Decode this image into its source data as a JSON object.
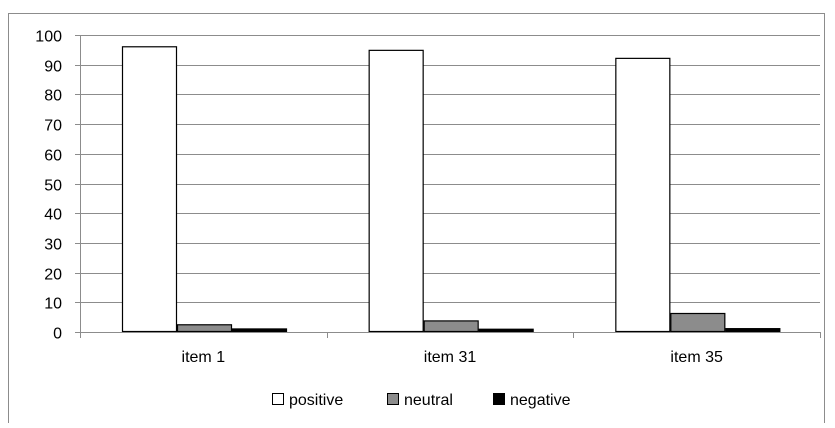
{
  "chart_data": {
    "type": "bar",
    "title": "",
    "xlabel": "",
    "ylabel": "",
    "categories": [
      "item 1",
      "item 31",
      "item 35"
    ],
    "ylim": [
      0,
      100
    ],
    "yticks": [
      0,
      10,
      20,
      30,
      40,
      50,
      60,
      70,
      80,
      90,
      100
    ],
    "yticks_labels": [
      "0",
      "10",
      "20",
      "30",
      "40",
      "50",
      "60",
      "70",
      "80",
      "90",
      "100"
    ],
    "grid": "horizontal",
    "legend_position": "bottom",
    "series": [
      {
        "name": "positive",
        "values": [
          96.2,
          95.0,
          92.3
        ],
        "color": "#ffffff"
      },
      {
        "name": "neutral",
        "values": [
          2.6,
          3.9,
          6.4
        ],
        "color": "#8c8c8c"
      },
      {
        "name": "negative",
        "values": [
          1.2,
          1.1,
          1.3
        ],
        "color": "#000000"
      }
    ]
  }
}
